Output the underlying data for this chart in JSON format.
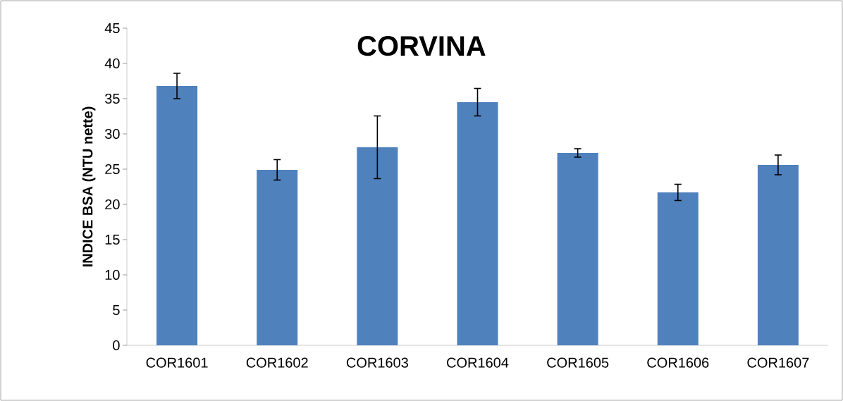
{
  "chart_data": {
    "type": "bar",
    "title": "CORVINA",
    "ylabel": "INDICE BSA (NTU nette)",
    "categories": [
      "COR1601",
      "COR1602",
      "COR1603",
      "COR1604",
      "COR1605",
      "COR1606",
      "COR1607"
    ],
    "values": [
      36.8,
      24.9,
      28.1,
      34.5,
      27.3,
      21.7,
      25.6
    ],
    "errors": [
      1.8,
      1.45,
      4.45,
      1.95,
      0.6,
      1.15,
      1.4
    ],
    "color": "#4f81bd",
    "ylim": [
      0,
      45
    ],
    "yticks": [
      0,
      5,
      10,
      15,
      20,
      25,
      30,
      35,
      40,
      45
    ],
    "grid": false
  }
}
